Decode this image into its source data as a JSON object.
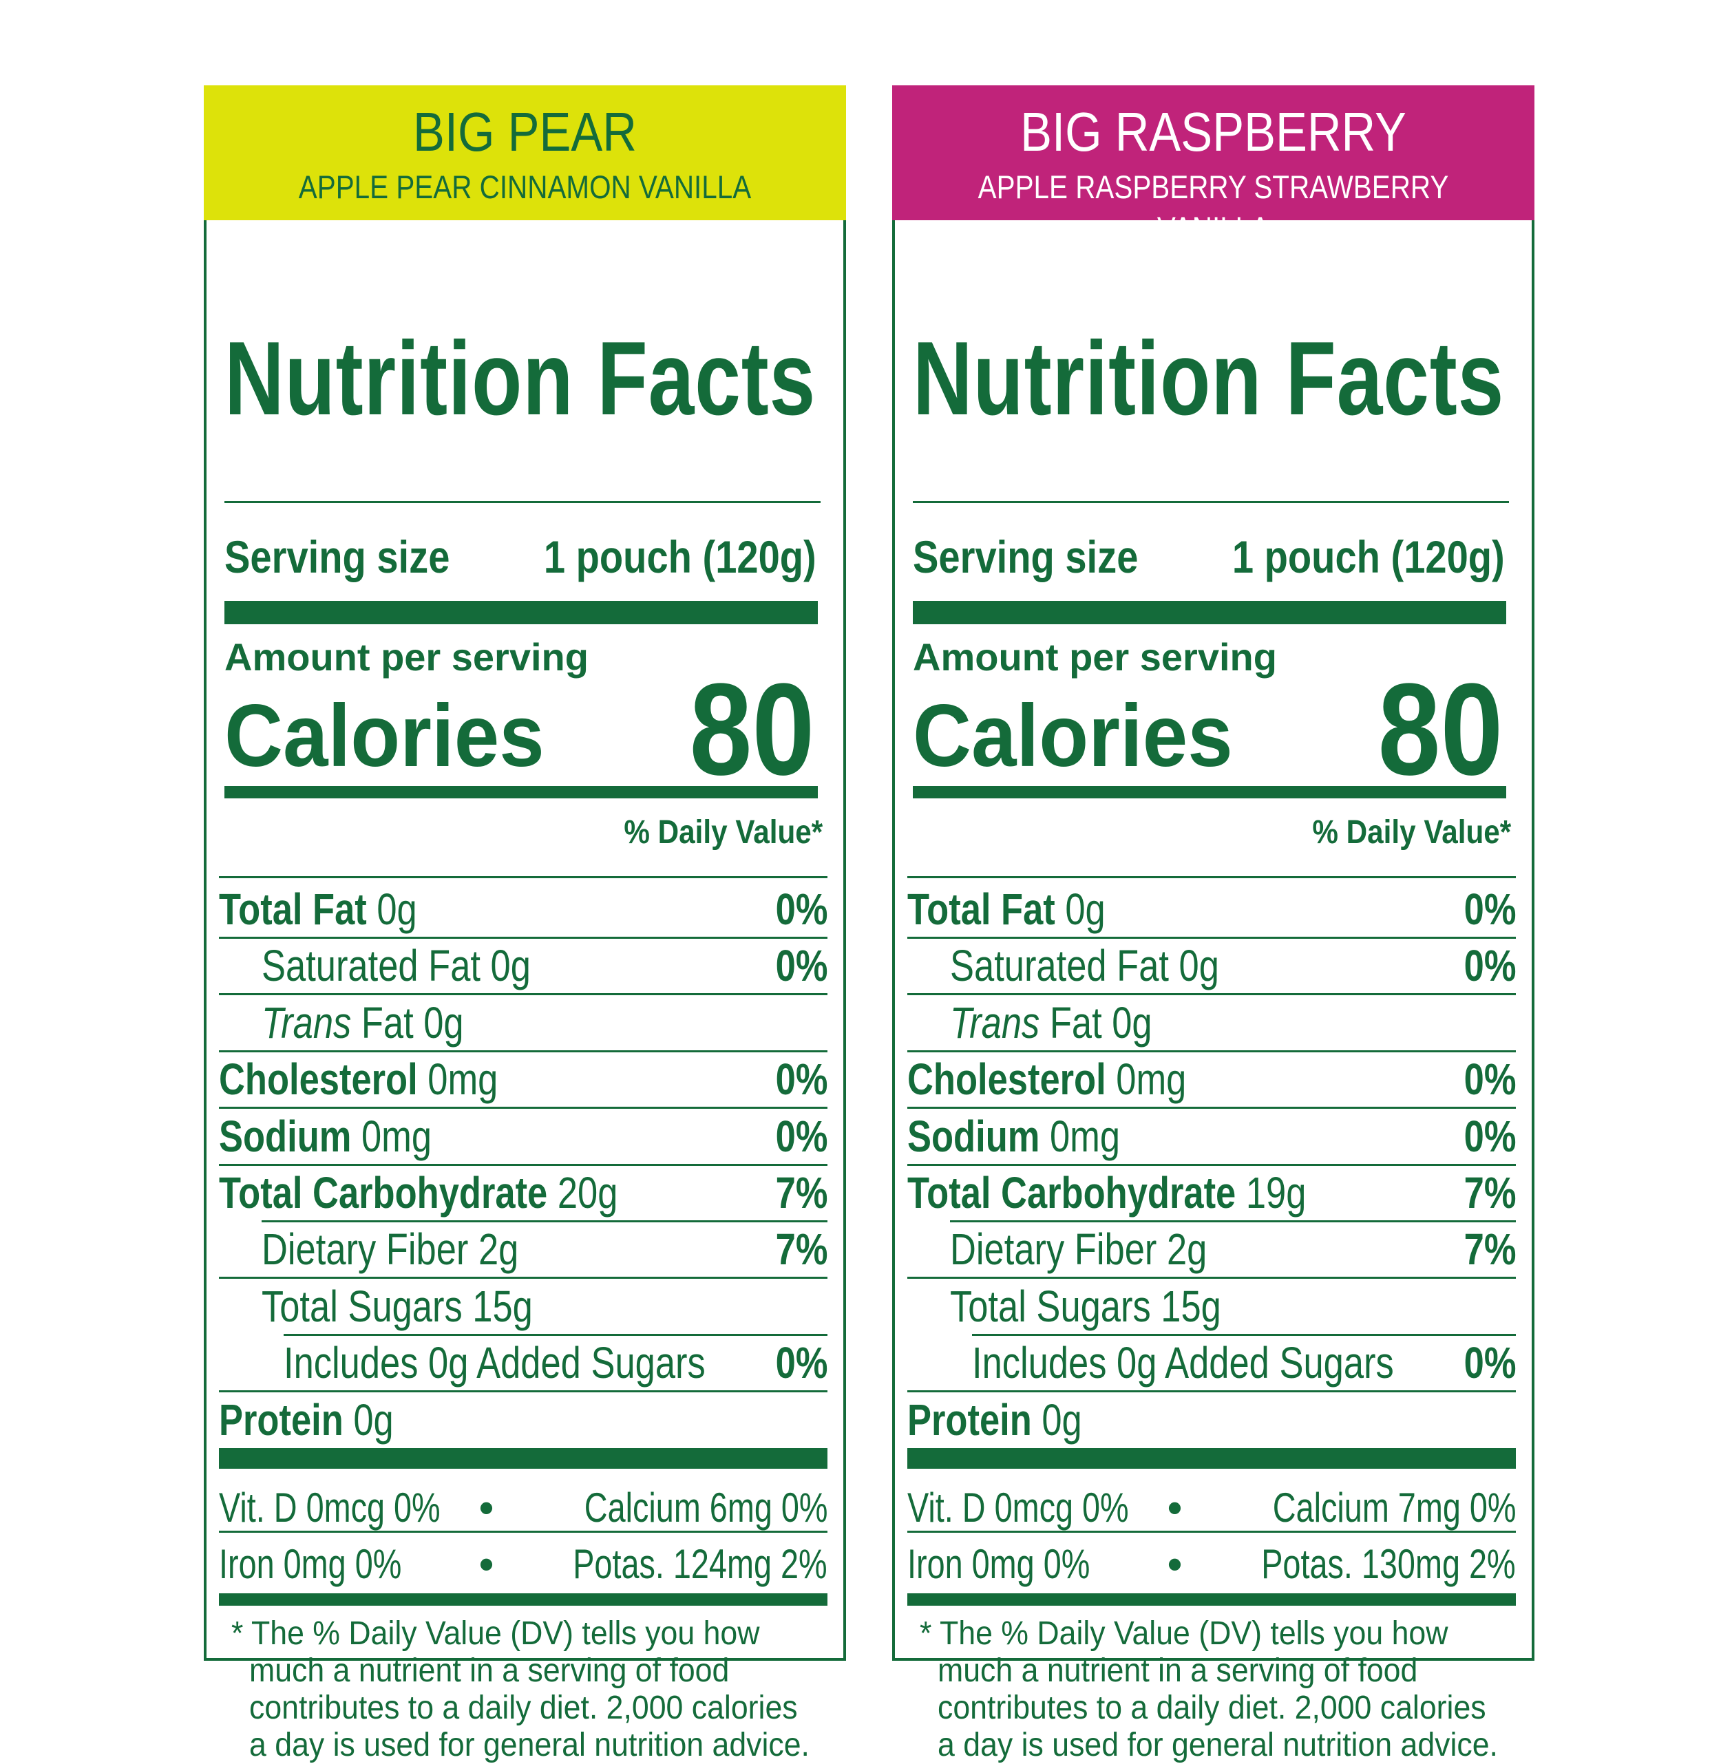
{
  "labels": [
    {
      "banner_title": "BIG PEAR",
      "banner_subtitle": "APPLE PEAR CINNAMON VANILLA",
      "banner_color": "#dde20a",
      "banner_text_color": "#146b3a",
      "title": "Nutrition Facts",
      "serving_label": "Serving size",
      "serving_value": "1 pouch (120g)",
      "amount_per_serving": "Amount per serving",
      "calories_label": "Calories",
      "calories_value": "80",
      "daily_value_header": "% Daily Value*",
      "nutrients": [
        {
          "bold": "Total Fat",
          "italic": "",
          "rest": " 0g",
          "dv": "0%"
        },
        {
          "bold": "",
          "italic": "",
          "rest": "Saturated Fat 0g",
          "dv": "0%"
        },
        {
          "bold": "",
          "italic": "Trans",
          "rest": " Fat 0g",
          "dv": ""
        },
        {
          "bold": "Cholesterol",
          "italic": "",
          "rest": " 0mg",
          "dv": "0%"
        },
        {
          "bold": "Sodium",
          "italic": "",
          "rest": " 0mg",
          "dv": "0%"
        },
        {
          "bold": "Total Carbohydrate",
          "italic": "",
          "rest": " 20g",
          "dv": "7%"
        },
        {
          "bold": "",
          "italic": "",
          "rest": "Dietary Fiber 2g",
          "dv": "7%"
        },
        {
          "bold": "",
          "italic": "",
          "rest": "Total Sugars 15g",
          "dv": ""
        },
        {
          "bold": "",
          "italic": "",
          "rest": "Includes 0g Added Sugars",
          "dv": "0%"
        },
        {
          "bold": "Protein",
          "italic": "",
          "rest": " 0g",
          "dv": ""
        }
      ],
      "vitamins": [
        {
          "left": "Vit. D 0mcg 0%",
          "dot": "•",
          "right": "Calcium 6mg 0%"
        },
        {
          "left": "Iron 0mg 0%",
          "dot": "•",
          "right": "Potas. 124mg 2%"
        }
      ],
      "footnote": [
        "* The % Daily Value (DV) tells you how",
        "much a nutrient in a serving of food",
        "contributes to a daily diet. 2,000 calories",
        "a day is used for general nutrition advice."
      ]
    },
    {
      "banner_title": "BIG RASPBERRY",
      "banner_subtitle": "APPLE RASPBERRY STRAWBERRY VANILLA",
      "banner_color": "#c0237a",
      "banner_text_color": "#ffffff",
      "title": "Nutrition Facts",
      "serving_label": "Serving size",
      "serving_value": "1 pouch (120g)",
      "amount_per_serving": "Amount per serving",
      "calories_label": "Calories",
      "calories_value": "80",
      "daily_value_header": "% Daily Value*",
      "nutrients": [
        {
          "bold": "Total Fat",
          "italic": "",
          "rest": " 0g",
          "dv": "0%"
        },
        {
          "bold": "",
          "italic": "",
          "rest": "Saturated Fat 0g",
          "dv": "0%"
        },
        {
          "bold": "",
          "italic": "Trans",
          "rest": " Fat 0g",
          "dv": ""
        },
        {
          "bold": "Cholesterol",
          "italic": "",
          "rest": " 0mg",
          "dv": "0%"
        },
        {
          "bold": "Sodium",
          "italic": "",
          "rest": " 0mg",
          "dv": "0%"
        },
        {
          "bold": "Total Carbohydrate",
          "italic": "",
          "rest": " 19g",
          "dv": "7%"
        },
        {
          "bold": "",
          "italic": "",
          "rest": "Dietary Fiber 2g",
          "dv": "7%"
        },
        {
          "bold": "",
          "italic": "",
          "rest": "Total Sugars 15g",
          "dv": ""
        },
        {
          "bold": "",
          "italic": "",
          "rest": "Includes 0g Added Sugars",
          "dv": "0%"
        },
        {
          "bold": "Protein",
          "italic": "",
          "rest": " 0g",
          "dv": ""
        }
      ],
      "vitamins": [
        {
          "left": "Vit. D 0mcg 0%",
          "dot": "•",
          "right": "Calcium 7mg 0%"
        },
        {
          "left": "Iron 0mg 0%",
          "dot": "•",
          "right": "Potas. 130mg 2%"
        }
      ],
      "footnote": [
        "* The % Daily Value (DV) tells you how",
        "much a nutrient in a serving of food",
        "contributes to a daily diet. 2,000 calories",
        "a day is used for general nutrition advice."
      ]
    }
  ],
  "colors": {
    "ink": "#146b3a"
  }
}
